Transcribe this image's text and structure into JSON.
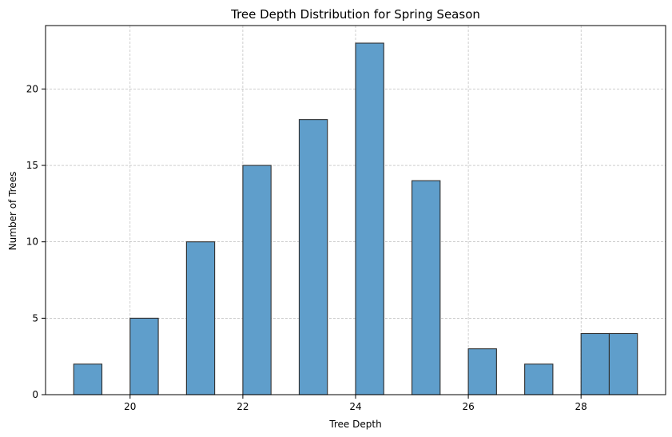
{
  "chart_data": {
    "type": "bar",
    "title": "Tree Depth Distribution for Spring Season",
    "xlabel": "Tree Depth",
    "ylabel": "Number of Trees",
    "xlim": [
      18.5,
      29.5
    ],
    "ylim": [
      0,
      24.15
    ],
    "xticks": [
      20,
      22,
      24,
      26,
      28
    ],
    "yticks": [
      0,
      5,
      10,
      15,
      20
    ],
    "grid": true,
    "bin_edges": [
      19,
      19.5,
      20,
      20.5,
      21,
      21.5,
      22,
      22.5,
      23,
      23.5,
      24,
      24.5,
      25,
      25.5,
      26,
      26.5,
      27,
      27.5,
      28,
      28.5,
      29
    ],
    "values": [
      2,
      0,
      5,
      0,
      10,
      0,
      15,
      0,
      18,
      0,
      23,
      0,
      14,
      0,
      3,
      0,
      2,
      0,
      4,
      4
    ],
    "colors": {
      "bar_fill": "#5f9ecb",
      "bar_edge": "#2f2f2f",
      "grid": "#b0b0b0",
      "axis": "#000000"
    }
  }
}
